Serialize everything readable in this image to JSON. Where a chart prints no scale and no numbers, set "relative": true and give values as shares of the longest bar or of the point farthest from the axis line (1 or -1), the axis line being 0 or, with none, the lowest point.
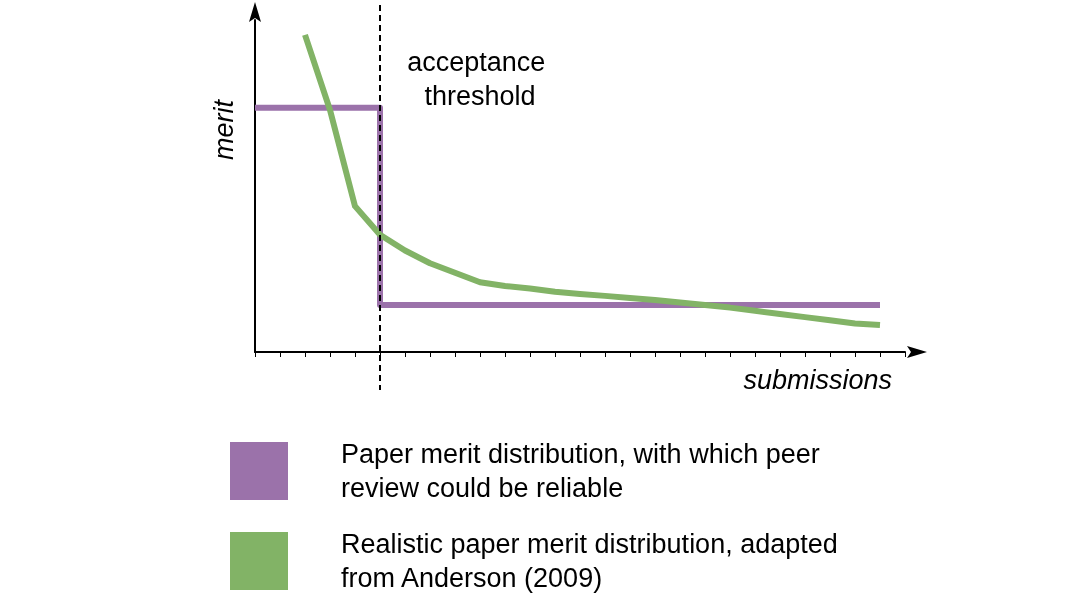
{
  "chart_data": {
    "type": "line",
    "relative": true,
    "xlabel": "submissions",
    "ylabel": "merit",
    "grid": false,
    "legend": "bottom",
    "marker": "none",
    "categories": [
      null,
      null,
      null,
      null,
      null,
      null,
      null,
      null,
      null,
      null,
      null,
      null,
      null,
      null,
      null,
      null,
      null,
      null,
      null,
      null,
      null,
      null,
      null,
      null,
      null,
      null,
      null
    ],
    "series": [
      {
        "name": "Paper merit distribution, with which peer review could be reliable",
        "type": "step",
        "color": "#9b72aa",
        "values": [
          0.77,
          0.77,
          0.77,
          0.77,
          0.77,
          0.148,
          0.148,
          0.148,
          0.148,
          0.148,
          0.148,
          0.148,
          0.148,
          0.148,
          0.148,
          0.148,
          0.148,
          0.148,
          0.148,
          0.148,
          0.148,
          0.148,
          0.148,
          0.148,
          0.148,
          0.148,
          null
        ]
      },
      {
        "name": "Realistic paper merit distribution, adapted from Anderson (2009)",
        "color": "#82b366",
        "values": [
          null,
          null,
          1.0,
          0.763,
          0.46,
          0.37,
          0.32,
          0.28,
          0.25,
          0.22,
          0.208,
          0.2,
          0.19,
          0.183,
          0.177,
          0.17,
          0.164,
          0.156,
          0.148,
          0.14,
          0.13,
          0.12,
          0.11,
          0.1,
          0.09,
          0.085,
          null
        ]
      }
    ],
    "annotations": [
      "acceptance threshold"
    ]
  }
}
